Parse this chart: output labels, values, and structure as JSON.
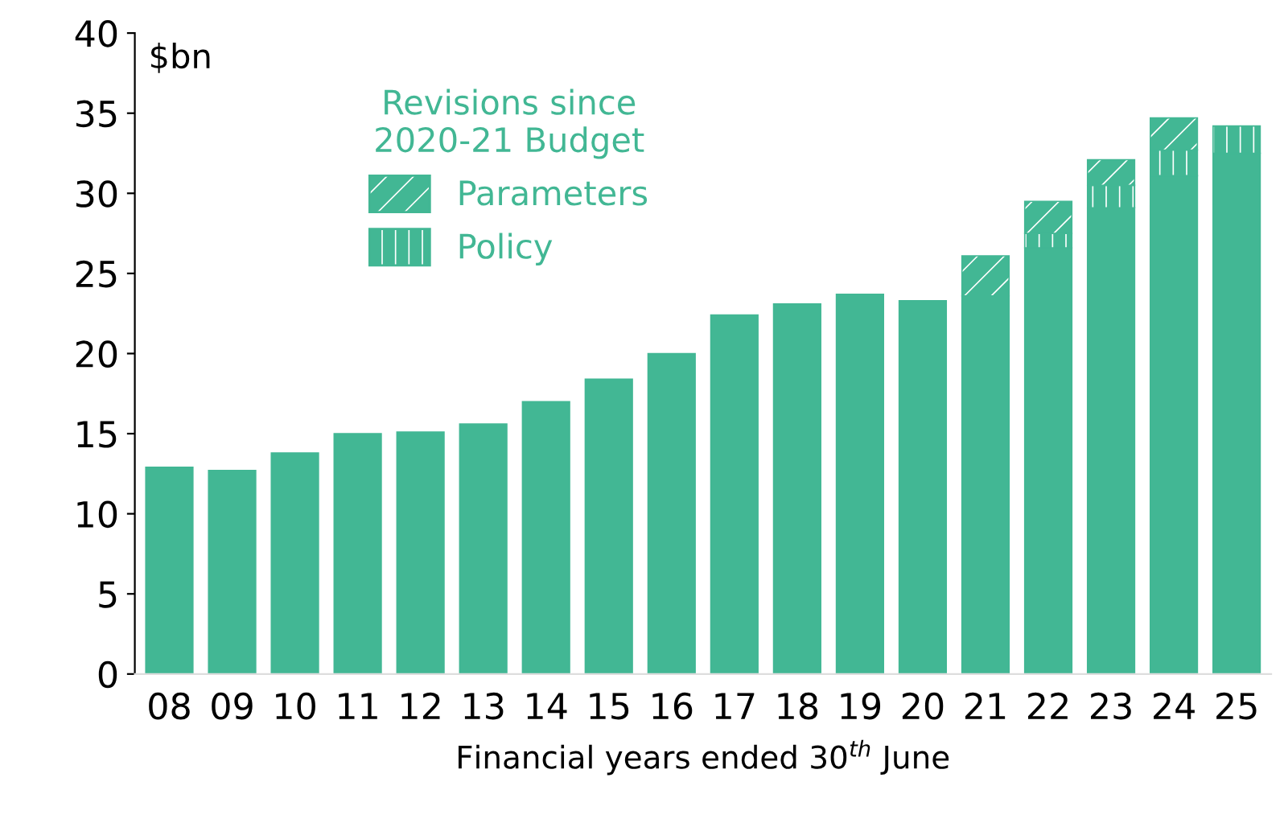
{
  "chart_data": {
    "type": "bar",
    "stacked": true,
    "xlabel": "Financial years ended 30$^{th}$ June",
    "ylabel": "$bn",
    "legend_title": "Revisions since\n2020-21 Budget",
    "legend": "top left",
    "grid": false,
    "categories": [
      "08",
      "09",
      "10",
      "11",
      "12",
      "13",
      "14",
      "15",
      "16",
      "17",
      "18",
      "19",
      "20",
      "21",
      "22",
      "23",
      "24",
      "25"
    ],
    "series": [
      {
        "color": "#42b794",
        "values": [
          12.9,
          12.7,
          13.8,
          15.0,
          15.1,
          15.6,
          17.0,
          18.4,
          20.0,
          22.4,
          23.1,
          23.7,
          23.3,
          23.6,
          26.6,
          29.1,
          31.1,
          32.5
        ]
      },
      {
        "name": "Policy",
        "color": "#42b794",
        "values": [
          null,
          null,
          null,
          null,
          null,
          null,
          null,
          null,
          null,
          null,
          null,
          null,
          null,
          null,
          0.9,
          1.4,
          1.6,
          1.7
        ]
      },
      {
        "name": "Parameters",
        "color": "#42b794",
        "values": [
          null,
          null,
          null,
          null,
          null,
          null,
          null,
          null,
          null,
          null,
          null,
          null,
          null,
          2.5,
          2.0,
          1.6,
          2.0,
          null
        ]
      }
    ],
    "ylim": [
      0,
      40
    ],
    "yticks": [
      0,
      5,
      10,
      15,
      20,
      25,
      30,
      35,
      40
    ]
  }
}
